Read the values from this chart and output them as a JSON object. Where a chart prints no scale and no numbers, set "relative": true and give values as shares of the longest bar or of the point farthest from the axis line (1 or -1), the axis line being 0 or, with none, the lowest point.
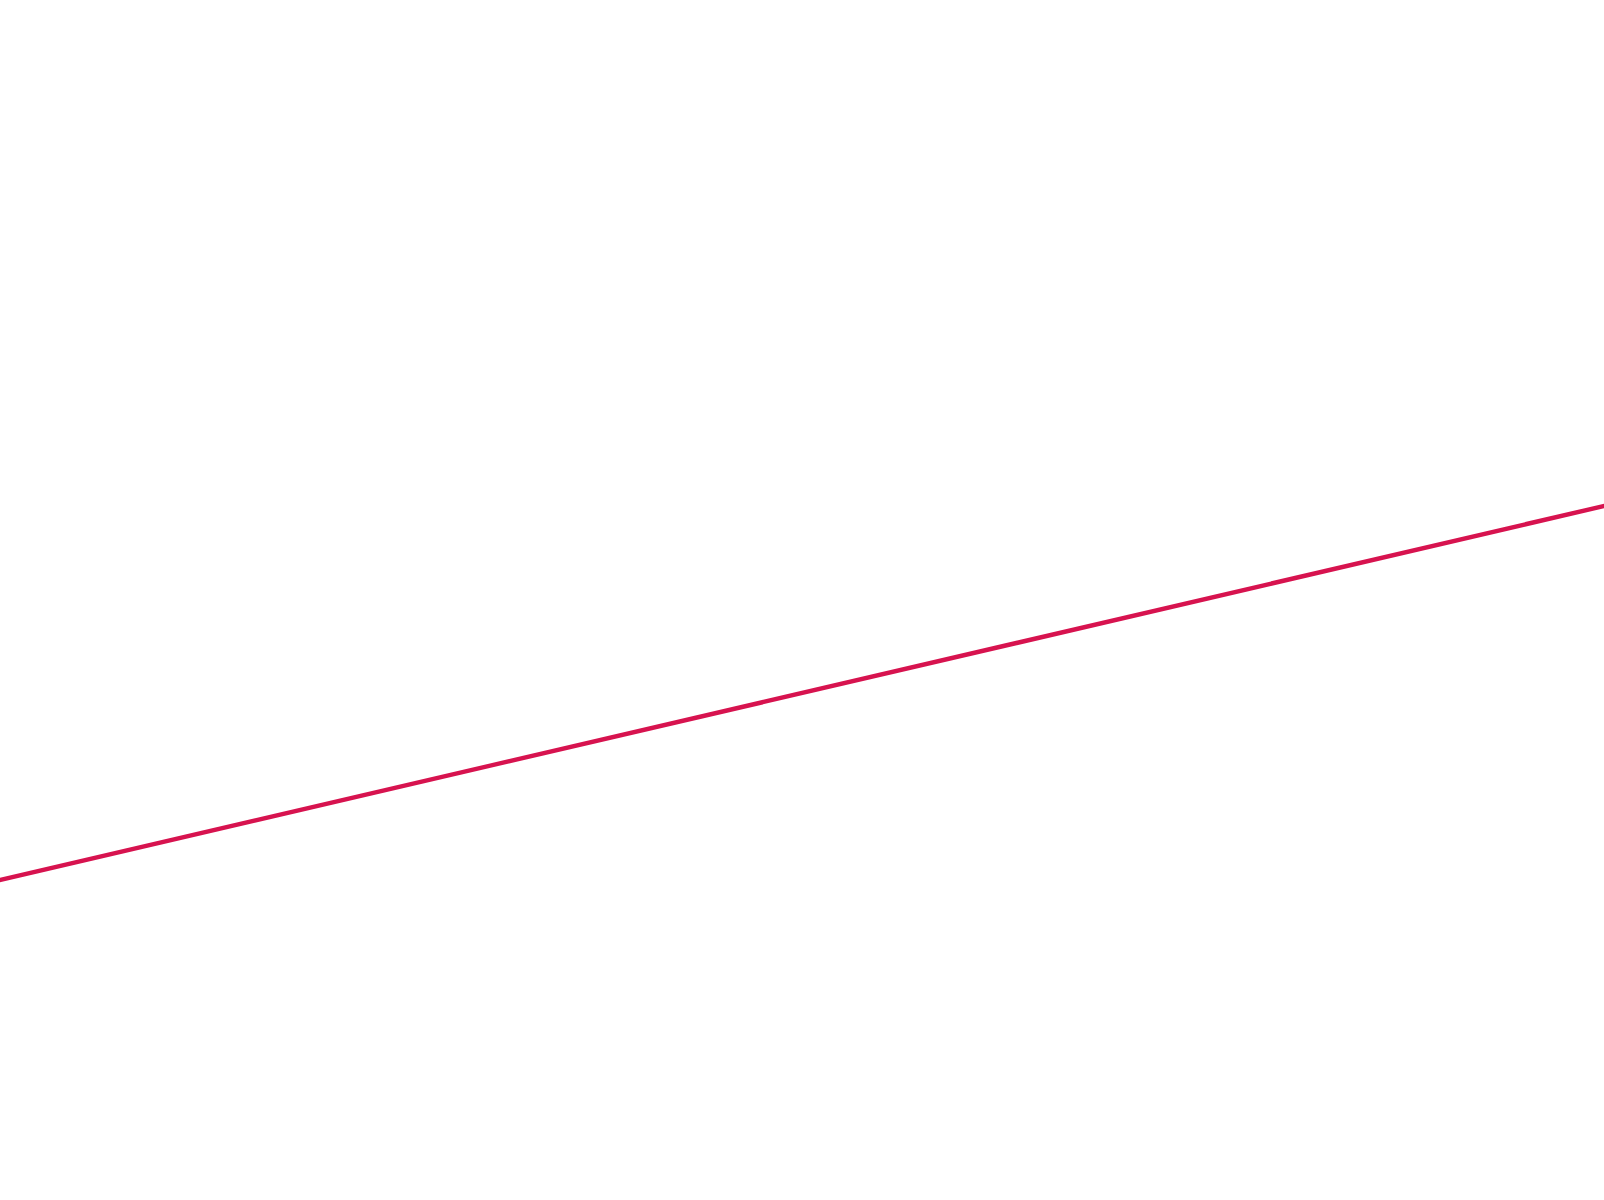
{
  "chart_data": {
    "type": "line",
    "relative": true,
    "categories": [
      null,
      null
    ],
    "series": [
      {
        "color": "#d7134f",
        "values": [
          0,
          1
        ]
      }
    ],
    "legend": false,
    "marker": "none",
    "line_style": "solid",
    "tick_labels": false
  }
}
